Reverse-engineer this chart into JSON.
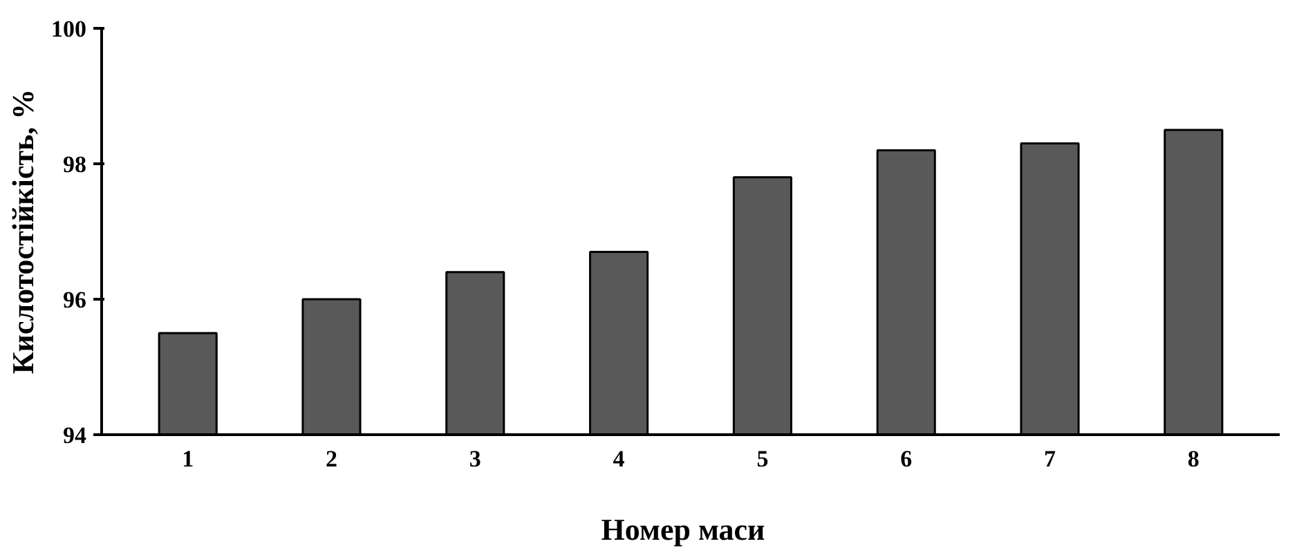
{
  "chart_data": {
    "type": "bar",
    "xlabel": "Номер   маси",
    "ylabel": "Кислотостійкість, %",
    "categories": [
      "1",
      "2",
      "3",
      "4",
      "5",
      "6",
      "7",
      "8"
    ],
    "values": [
      95.5,
      96.0,
      96.4,
      96.7,
      97.8,
      98.2,
      98.3,
      98.5
    ],
    "color": "#595959",
    "ylim": [
      94,
      100
    ],
    "yticks": [
      94,
      96,
      98,
      100
    ],
    "grid": false
  }
}
